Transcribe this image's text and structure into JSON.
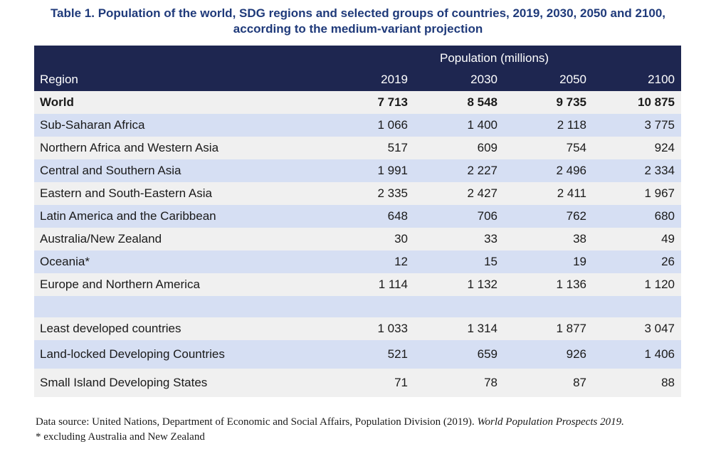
{
  "title": {
    "line1": "Table 1. Population of the world, SDG regions and selected groups of countries, 2019, 2030, 2050 and 2100,",
    "line2": "according to the medium-variant projection"
  },
  "header": {
    "group_label": "Population (millions)",
    "region_label": "Region",
    "years": [
      "2019",
      "2030",
      "2050",
      "2100"
    ]
  },
  "rows": [
    {
      "region": "World",
      "values": [
        "7 713",
        "8 548",
        "9 735",
        "10 875"
      ]
    },
    {
      "region": "Sub-Saharan Africa",
      "values": [
        "1 066",
        "1 400",
        "2 118",
        "3 775"
      ]
    },
    {
      "region": "Northern Africa and Western Asia",
      "values": [
        "517",
        "609",
        "754",
        "924"
      ]
    },
    {
      "region": "Central and Southern Asia",
      "values": [
        "1 991",
        "2 227",
        "2 496",
        "2 334"
      ]
    },
    {
      "region": "Eastern and South-Eastern Asia",
      "values": [
        "2 335",
        "2 427",
        "2 411",
        "1 967"
      ]
    },
    {
      "region": "Latin America and the Caribbean",
      "values": [
        "648",
        "706",
        "762",
        "680"
      ]
    },
    {
      "region": "Australia/New Zealand",
      "values": [
        "30",
        "33",
        "38",
        "49"
      ]
    },
    {
      "region": "Oceania*",
      "values": [
        "12",
        "15",
        "19",
        "26"
      ]
    },
    {
      "region": "Europe and Northern America",
      "values": [
        "1 114",
        "1 132",
        "1 136",
        "1 120"
      ]
    }
  ],
  "groups": [
    {
      "region": "Least developed countries",
      "values": [
        "1 033",
        "1 314",
        "1 877",
        "3 047"
      ]
    },
    {
      "region": "Land-locked Developing Countries",
      "values": [
        "521",
        "659",
        "926",
        "1 406"
      ]
    },
    {
      "region": "Small Island Developing States",
      "values": [
        "71",
        "78",
        "87",
        "88"
      ]
    }
  ],
  "footer": {
    "source_prefix": "Data source: United Nations, Department of Economic and Social Affairs, Population Division (2019).",
    "source_title": "World Population Prospects 2019.",
    "note": "* excluding Australia and New Zealand"
  },
  "colors": {
    "title": "#1f3a7a",
    "header_bg": "#1e2650",
    "row_light": "#f0f0f0",
    "row_blue": "#d6dff3"
  }
}
